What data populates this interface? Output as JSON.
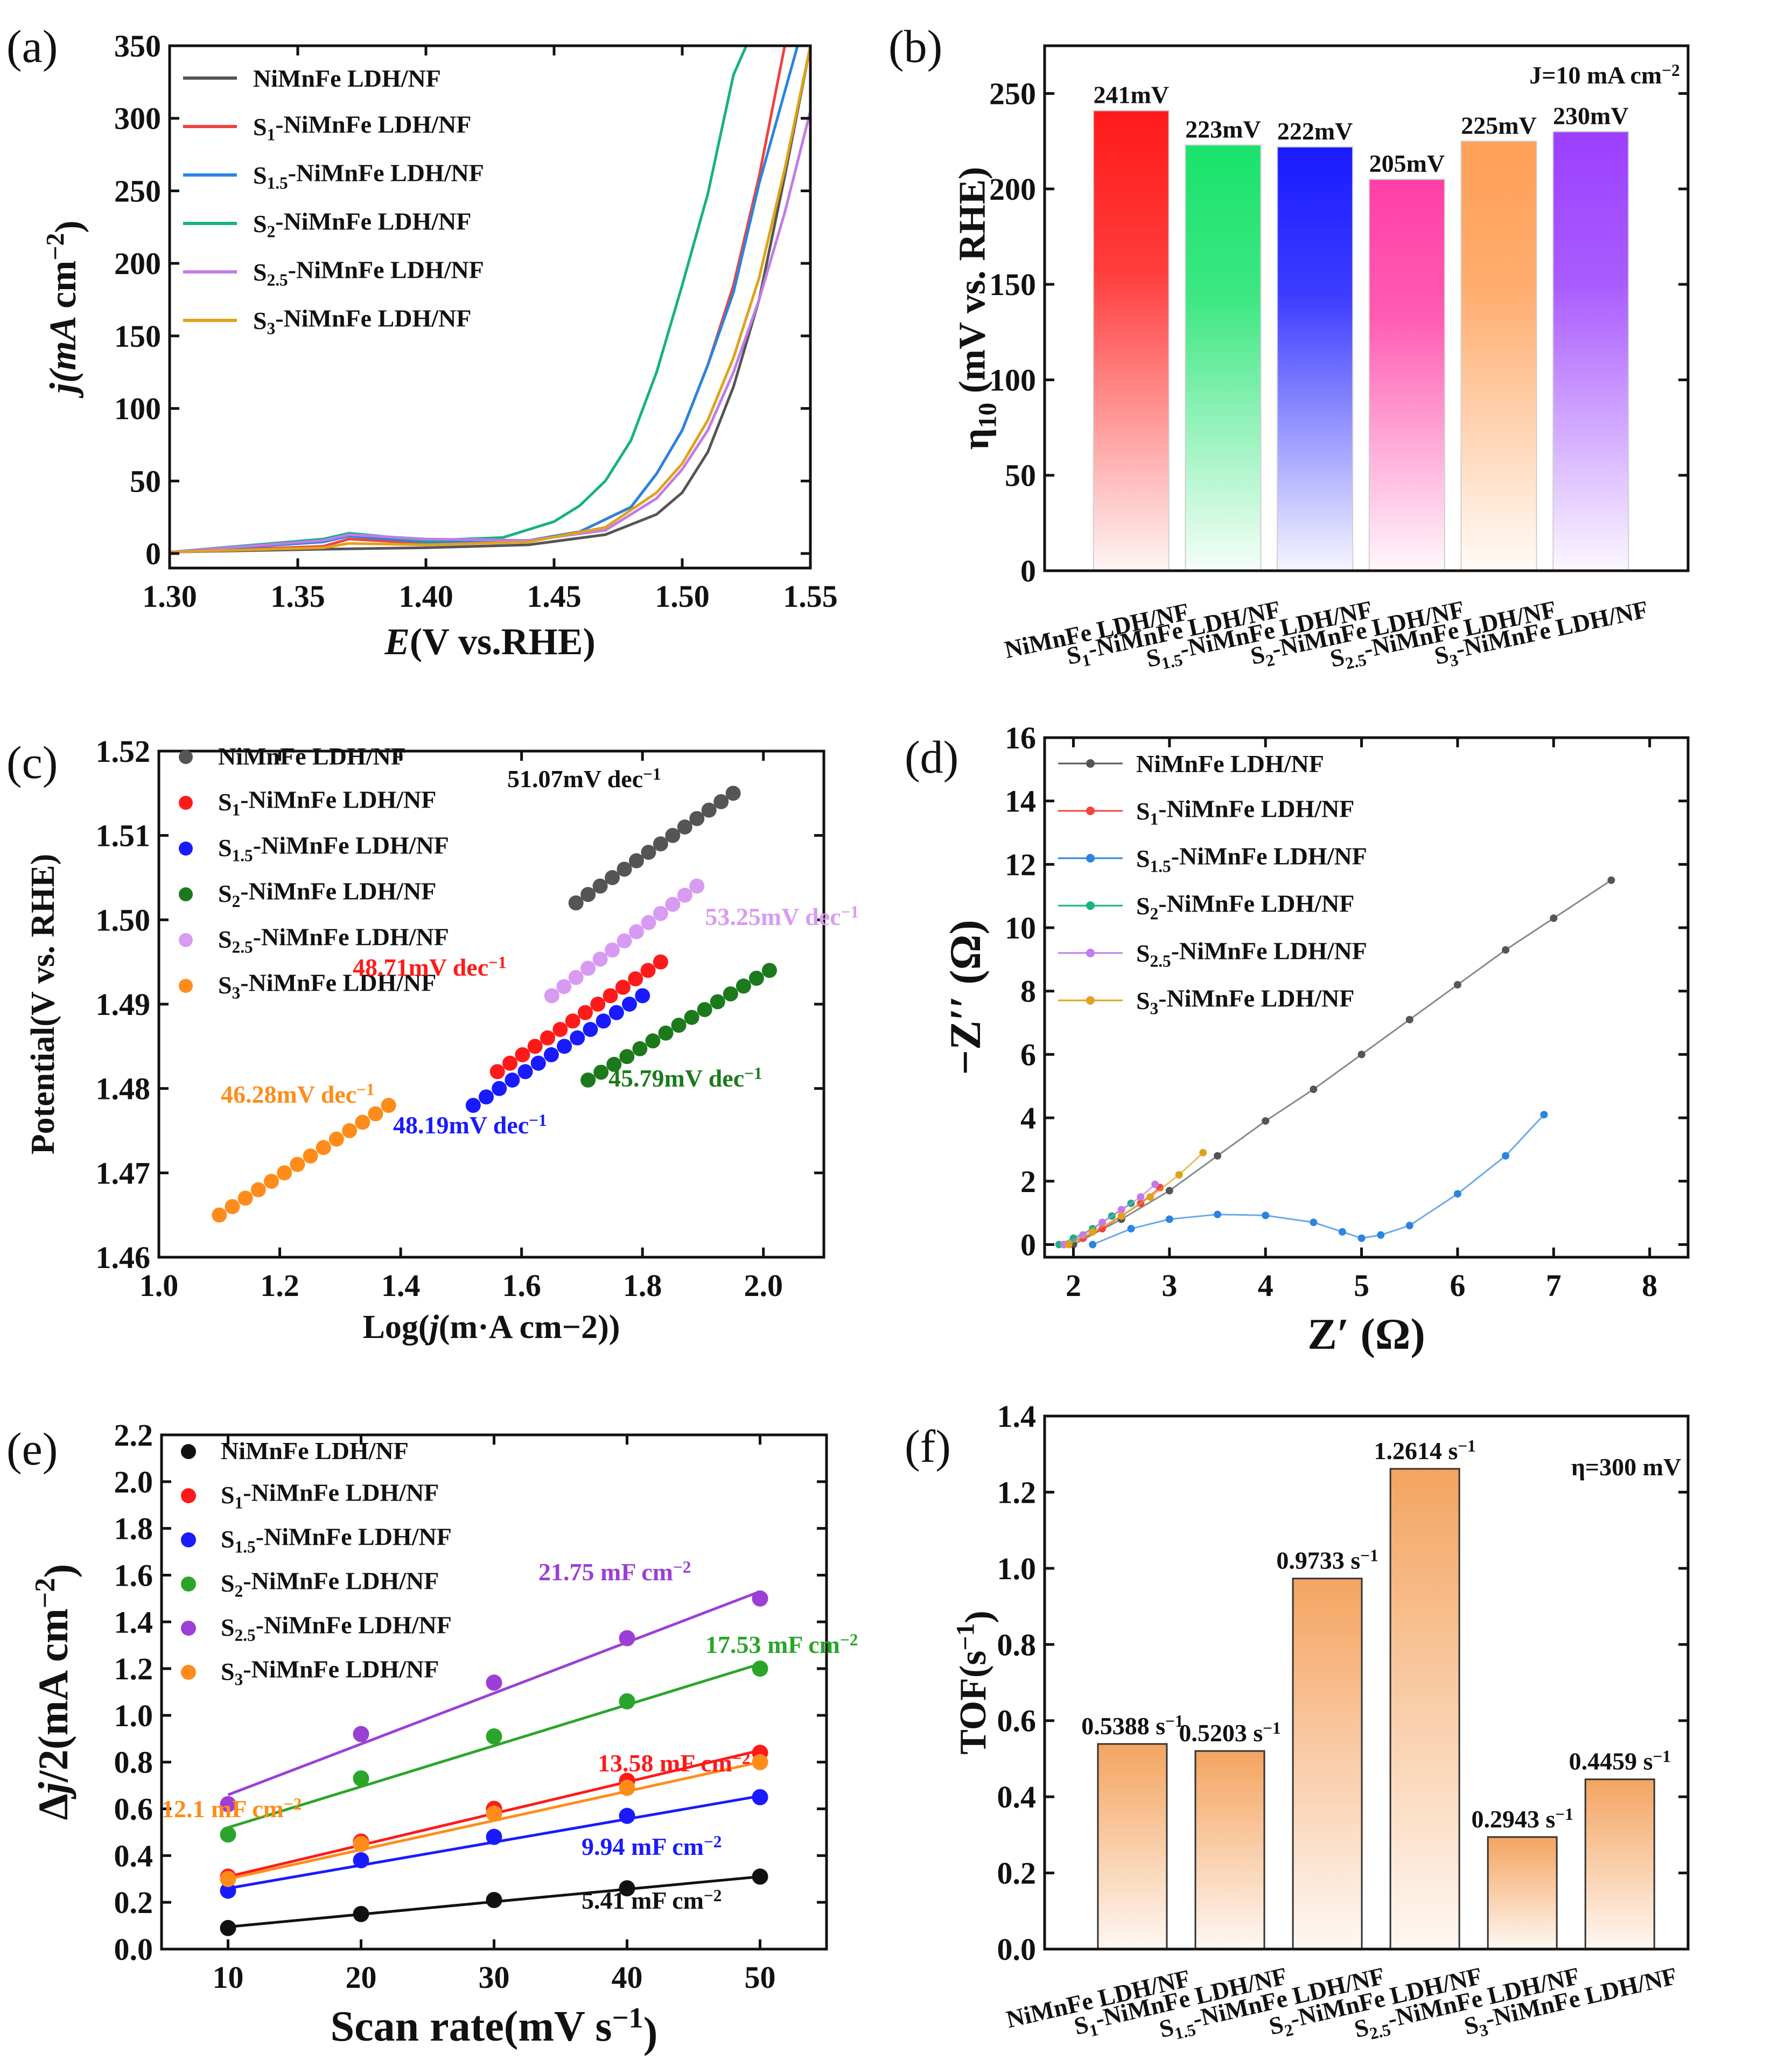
{
  "colors": {
    "s0": "#555555",
    "s1": "#f0433e",
    "s15": "#2a84e0",
    "s2": "#17b27f",
    "s25": "#c27be8",
    "s3": "#e0a21b",
    "bar0": "#ff1a1a",
    "bar1": "#19e36b",
    "bar15": "#1a1aff",
    "bar2": "#ff3fa6",
    "bar25": "#ff9f56",
    "bar3": "#9b3fff",
    "c0": "#555555",
    "c1": "#ff1a1a",
    "c15": "#1a1aff",
    "c2": "#1c7a1c",
    "c25": "#d89bf2",
    "c3": "#ff8c1a",
    "e0": "#111111",
    "e1": "#ff1a1a",
    "e15": "#1a1aff",
    "e2": "#2aa52a",
    "e25": "#9b3fd6",
    "e3": "#ff8c1a",
    "tof": "#f4a460"
  },
  "chart_data": [
    {
      "panel": "(a)",
      "type": "line",
      "xlabel": "E(V vs.RHE)",
      "ylabel": "j(mA cm−2)",
      "xlim": [
        1.3,
        1.55
      ],
      "ylim": [
        -10,
        350
      ],
      "xticks": [
        "1.30",
        "1.35",
        "1.40",
        "1.45",
        "1.50",
        "1.55"
      ],
      "yticks": [
        "0",
        "50",
        "100",
        "150",
        "200",
        "250",
        "300",
        "350"
      ],
      "legend": [
        "NiMnFe LDH/NF",
        "S1-NiMnFe LDH/NF",
        "S1.5-NiMnFe LDH/NF",
        "S2-NiMnFe LDH/NF",
        "S2.5-NiMnFe LDH/NF",
        "S3-NiMnFe LDH/NF"
      ],
      "series": [
        {
          "name": "NiMnFe LDH/NF",
          "x": [
            1.3,
            1.36,
            1.4,
            1.44,
            1.47,
            1.49,
            1.5,
            1.51,
            1.52,
            1.53,
            1.54,
            1.55
          ],
          "y": [
            1,
            3,
            4,
            6,
            13,
            27,
            42,
            70,
            115,
            175,
            260,
            350
          ]
        },
        {
          "name": "S1-NiMnFe LDH/NF",
          "x": [
            1.3,
            1.36,
            1.37,
            1.4,
            1.44,
            1.46,
            1.48,
            1.49,
            1.5,
            1.51,
            1.52,
            1.53,
            1.54
          ],
          "y": [
            1,
            5,
            10,
            7,
            9,
            15,
            32,
            55,
            85,
            130,
            185,
            260,
            350
          ]
        },
        {
          "name": "S1.5-NiMnFe LDH/NF",
          "x": [
            1.3,
            1.36,
            1.37,
            1.4,
            1.44,
            1.46,
            1.48,
            1.49,
            1.5,
            1.51,
            1.52,
            1.53,
            1.545
          ],
          "y": [
            1,
            8,
            12,
            8,
            9,
            15,
            32,
            55,
            85,
            130,
            180,
            255,
            350
          ]
        },
        {
          "name": "S2-NiMnFe LDH/NF",
          "x": [
            1.3,
            1.36,
            1.37,
            1.4,
            1.43,
            1.45,
            1.46,
            1.47,
            1.48,
            1.49,
            1.5,
            1.51,
            1.52,
            1.525
          ],
          "y": [
            1,
            10,
            14,
            9,
            11,
            22,
            33,
            50,
            78,
            125,
            185,
            248,
            330,
            350
          ]
        },
        {
          "name": "S2.5-NiMnFe LDH/NF",
          "x": [
            1.3,
            1.36,
            1.37,
            1.4,
            1.44,
            1.47,
            1.49,
            1.5,
            1.51,
            1.52,
            1.53,
            1.54,
            1.55
          ],
          "y": [
            1,
            9,
            13,
            10,
            9,
            16,
            38,
            58,
            85,
            125,
            175,
            235,
            305
          ]
        },
        {
          "name": "S3-NiMnFe LDH/NF",
          "x": [
            1.3,
            1.36,
            1.37,
            1.4,
            1.44,
            1.47,
            1.49,
            1.5,
            1.51,
            1.52,
            1.53,
            1.54,
            1.55
          ],
          "y": [
            1,
            4,
            7,
            6,
            8,
            18,
            42,
            62,
            92,
            135,
            190,
            265,
            350
          ]
        }
      ]
    },
    {
      "panel": "(b)",
      "type": "bar",
      "ylabel": "η10 (mV vs. RHE)",
      "ylim": [
        0,
        275
      ],
      "yticks": [
        "0",
        "50",
        "100",
        "150",
        "200",
        "250"
      ],
      "annotation": "J=10 mA cm−2",
      "categories": [
        "NiMnFe LDH/NF",
        "S1-NiMnFe LDH/NF",
        "S1.5-NiMnFe LDH/NF",
        "S2-NiMnFe LDH/NF",
        "S2.5-NiMnFe LDH/NF",
        "S3-NiMnFe LDH/NF"
      ],
      "values": [
        241,
        223,
        222,
        205,
        225,
        230
      ],
      "labels": [
        "241mV",
        "223mV",
        "222mV",
        "205mV",
        "225mV",
        "230mV"
      ]
    },
    {
      "panel": "(c)",
      "type": "scatter",
      "xlabel": "Log(j(m·A cm−2))",
      "ylabel": "Potential(V vs. RHE)",
      "xlim": [
        1.0,
        2.1
      ],
      "ylim": [
        1.46,
        1.52
      ],
      "xticks": [
        "1.0",
        "1.2",
        "1.4",
        "1.6",
        "1.8",
        "2.0"
      ],
      "yticks": [
        "1.46",
        "1.47",
        "1.48",
        "1.49",
        "1.50",
        "1.51",
        "1.52"
      ],
      "legend": [
        "NiMnFe LDH/NF",
        "S1-NiMnFe LDH/NF",
        "S1.5-NiMnFe LDH/NF",
        "S2-NiMnFe LDH/NF",
        "S2.5-NiMnFe LDH/NF",
        "S3-NiMnFe LDH/NF"
      ],
      "series": [
        {
          "name": "NiMnFe LDH/NF",
          "x_start": 1.69,
          "x_end": 1.95,
          "y_start": 1.502,
          "y_end": 1.515,
          "n": 14,
          "tafel": "51.07mV dec−1"
        },
        {
          "name": "S1-NiMnFe LDH/NF",
          "x_start": 1.56,
          "x_end": 1.83,
          "y_start": 1.482,
          "y_end": 1.495,
          "n": 14,
          "tafel": "48.71mV dec−1"
        },
        {
          "name": "S1.5-NiMnFe LDH/NF",
          "x_start": 1.52,
          "x_end": 1.8,
          "y_start": 1.478,
          "y_end": 1.491,
          "n": 14,
          "tafel": "48.19mV dec−1"
        },
        {
          "name": "S2-NiMnFe LDH/NF",
          "x_start": 1.71,
          "x_end": 2.01,
          "y_start": 1.481,
          "y_end": 1.494,
          "n": 15,
          "tafel": "45.79mV dec−1"
        },
        {
          "name": "S2.5-NiMnFe LDH/NF",
          "x_start": 1.65,
          "x_end": 1.89,
          "y_start": 1.491,
          "y_end": 1.504,
          "n": 13,
          "tafel": "53.25mV dec−1"
        },
        {
          "name": "S3-NiMnFe LDH/NF",
          "x_start": 1.1,
          "x_end": 1.38,
          "y_start": 1.465,
          "y_end": 1.478,
          "n": 14,
          "tafel": "46.28mV dec−1"
        }
      ]
    },
    {
      "panel": "(d)",
      "type": "scatter",
      "xlabel": "Z′ (Ω)",
      "ylabel": "−Z′′ (Ω)",
      "xlim": [
        1.7,
        8.4
      ],
      "ylim": [
        -0.4,
        16
      ],
      "xticks": [
        "2",
        "3",
        "4",
        "5",
        "6",
        "7",
        "8"
      ],
      "yticks": [
        "0",
        "2",
        "4",
        "6",
        "8",
        "10",
        "12",
        "14",
        "16"
      ],
      "legend": [
        "NiMnFe LDH/NF",
        "S1-NiMnFe LDH/NF",
        "S1.5-NiMnFe LDH/NF",
        "S2-NiMnFe LDH/NF",
        "S2.5-NiMnFe LDH/NF",
        "S3-NiMnFe LDH/NF"
      ],
      "series": [
        {
          "name": "NiMnFe LDH/NF",
          "x": [
            2.0,
            2.5,
            3.0,
            3.5,
            4.0,
            4.5,
            5.0,
            5.5,
            6.0,
            6.5,
            7.0,
            7.6
          ],
          "y": [
            0,
            0.8,
            1.7,
            2.8,
            3.9,
            4.9,
            6.0,
            7.1,
            8.2,
            9.3,
            10.3,
            11.5
          ]
        },
        {
          "name": "S1-NiMnFe LDH/NF",
          "x": [
            1.9,
            2.1,
            2.3,
            2.5,
            2.7,
            2.9
          ],
          "y": [
            0,
            0.2,
            0.5,
            0.9,
            1.3,
            1.8
          ]
        },
        {
          "name": "S1.5-NiMnFe LDH/NF",
          "x": [
            2.2,
            2.6,
            3.0,
            3.5,
            4.0,
            4.5,
            4.8,
            5.0,
            5.2,
            5.5,
            6.0,
            6.5,
            6.9
          ],
          "y": [
            0,
            0.5,
            0.8,
            0.95,
            0.92,
            0.7,
            0.4,
            0.2,
            0.3,
            0.6,
            1.6,
            2.8,
            4.1
          ]
        },
        {
          "name": "S2-NiMnFe LDH/NF",
          "x": [
            1.85,
            2.0,
            2.2,
            2.4,
            2.6
          ],
          "y": [
            0,
            0.2,
            0.5,
            0.9,
            1.3
          ]
        },
        {
          "name": "S2.5-NiMnFe LDH/NF",
          "x": [
            1.9,
            2.1,
            2.3,
            2.5,
            2.7,
            2.85
          ],
          "y": [
            0,
            0.3,
            0.7,
            1.1,
            1.5,
            1.9
          ]
        },
        {
          "name": "S3-NiMnFe LDH/NF",
          "x": [
            1.95,
            2.2,
            2.5,
            2.8,
            3.1,
            3.35
          ],
          "y": [
            0,
            0.4,
            0.9,
            1.5,
            2.2,
            2.9
          ]
        }
      ]
    },
    {
      "panel": "(e)",
      "type": "scatter",
      "xlabel": "Scan rate(mV s−1)",
      "ylabel": "Δj/2(mA cm−2)",
      "xlim": [
        5,
        55
      ],
      "ylim": [
        0.0,
        2.2
      ],
      "xticks": [
        "10",
        "20",
        "30",
        "40",
        "50"
      ],
      "yticks": [
        "0.0",
        "0.2",
        "0.4",
        "0.6",
        "0.8",
        "1.0",
        "1.2",
        "1.4",
        "1.6",
        "1.8",
        "2.0",
        "2.2"
      ],
      "x": [
        10,
        20,
        30,
        40,
        50
      ],
      "legend": [
        "NiMnFe LDH/NF",
        "S1-NiMnFe LDH/NF",
        "S1.5-NiMnFe LDH/NF",
        "S2-NiMnFe LDH/NF",
        "S2.5-NiMnFe LDH/NF",
        "S3-NiMnFe LDH/NF"
      ],
      "series": [
        {
          "name": "NiMnFe LDH/NF",
          "values": [
            0.09,
            0.15,
            0.21,
            0.26,
            0.31
          ],
          "fit": [
            0.095,
            0.31
          ],
          "cdl": "5.41 mF cm−2"
        },
        {
          "name": "S1-NiMnFe LDH/NF",
          "values": [
            0.31,
            0.46,
            0.6,
            0.72,
            0.84
          ],
          "fit": [
            0.31,
            0.85
          ],
          "cdl": "13.58 mF cm−2"
        },
        {
          "name": "S1.5-NiMnFe LDH/NF",
          "values": [
            0.25,
            0.38,
            0.48,
            0.57,
            0.65
          ],
          "fit": [
            0.26,
            0.655
          ],
          "cdl": "9.94 mF cm−2"
        },
        {
          "name": "S2-NiMnFe LDH/NF",
          "values": [
            0.49,
            0.73,
            0.91,
            1.06,
            1.2
          ],
          "fit": [
            0.52,
            1.22
          ],
          "cdl": "17.53 mF cm−2"
        },
        {
          "name": "S2.5-NiMnFe LDH/NF",
          "values": [
            0.62,
            0.92,
            1.14,
            1.33,
            1.5
          ],
          "fit": [
            0.66,
            1.53
          ],
          "cdl": "21.75 mF cm−2"
        },
        {
          "name": "S3-NiMnFe LDH/NF",
          "values": [
            0.3,
            0.45,
            0.58,
            0.69,
            0.8
          ],
          "fit": [
            0.3,
            0.8
          ],
          "cdl": "12.1 mF cm−2"
        }
      ]
    },
    {
      "panel": "(f)",
      "type": "bar",
      "ylabel": "TOF(s−1)",
      "ylim": [
        0.0,
        1.4
      ],
      "yticks": [
        "0.0",
        "0.2",
        "0.4",
        "0.6",
        "0.8",
        "1.0",
        "1.2",
        "1.4"
      ],
      "annotation": "η=300 mV",
      "categories": [
        "NiMnFe LDH/NF",
        "S1-NiMnFe LDH/NF",
        "S1.5-NiMnFe LDH/NF",
        "S2-NiMnFe LDH/NF",
        "S2.5-NiMnFe LDH/NF",
        "S3-NiMnFe LDH/NF"
      ],
      "values": [
        0.5388,
        0.5203,
        0.9733,
        1.2614,
        0.2943,
        0.4459
      ],
      "labels": [
        "0.5388 s−1",
        "0.5203 s−1",
        "0.9733 s−1",
        "1.2614 s−1",
        "0.2943 s−1",
        "0.4459 s−1"
      ]
    }
  ]
}
